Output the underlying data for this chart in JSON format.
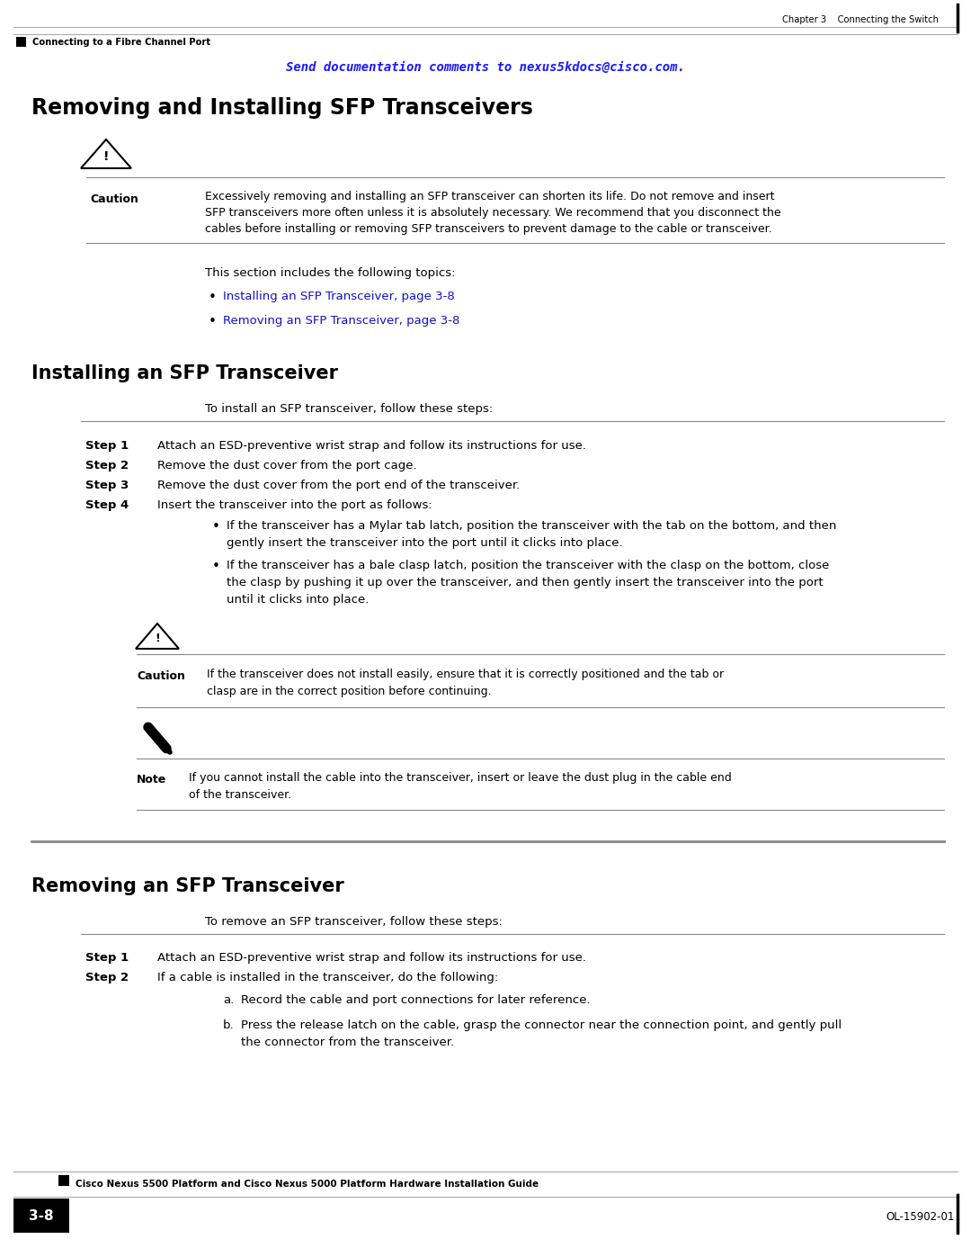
{
  "page_width": 10.8,
  "page_height": 13.97,
  "bg_color": "#ffffff",
  "chapter_text": "Chapter 3    Connecting the Switch",
  "header_left_text": "Connecting to a Fibre Channel Port",
  "send_docs_text": "Send documentation comments to nexus5kdocs@cisco.com.",
  "main_title": "Removing and Installing SFP Transceivers",
  "caution_text_line1": "Excessively removing and installing an SFP transceiver can shorten its life. Do not remove and insert",
  "caution_text_line2": "SFP transceivers more often unless it is absolutely necessary. We recommend that you disconnect the",
  "caution_text_line3": "cables before installing or removing SFP transceivers to prevent damage to the cable or transceiver.",
  "section_intro": "This section includes the following topics:",
  "bullet1": "Installing an SFP Transceiver, page 3-8",
  "bullet2": "Removing an SFP Transceiver, page 3-8",
  "install_title": "Installing an SFP Transceiver",
  "install_intro": "To install an SFP transceiver, follow these steps:",
  "step1_label": "Step 1",
  "step1_text": "Attach an ESD-preventive wrist strap and follow its instructions for use.",
  "step2_label": "Step 2",
  "step2_text": "Remove the dust cover from the port cage.",
  "step3_label": "Step 3",
  "step3_text": "Remove the dust cover from the port end of the transceiver.",
  "step4_label": "Step 4",
  "step4_text": "Insert the transceiver into the port as follows:",
  "bullet_install_1a": "If the transceiver has a Mylar tab latch, position the transceiver with the tab on the bottom, and then",
  "bullet_install_1b": "gently insert the transceiver into the port until it clicks into place.",
  "bullet_install_2a": "If the transceiver has a bale clasp latch, position the transceiver with the clasp on the bottom, close",
  "bullet_install_2b": "the clasp by pushing it up over the transceiver, and then gently insert the transceiver into the port",
  "bullet_install_2c": "until it clicks into place.",
  "caution2_text_line1": "If the transceiver does not install easily, ensure that it is correctly positioned and the tab or",
  "caution2_text_line2": "clasp are in the correct position before continuing.",
  "note_text_line1": "If you cannot install the cable into the transceiver, insert or leave the dust plug in the cable end",
  "note_text_line2": "of the transceiver.",
  "remove_title": "Removing an SFP Transceiver",
  "remove_intro": "To remove an SFP transceiver, follow these steps:",
  "rstep1_label": "Step 1",
  "rstep1_text": "Attach an ESD-preventive wrist strap and follow its instructions for use.",
  "rstep2_label": "Step 2",
  "rstep2_text": "If a cable is installed in the transceiver, do the following:",
  "rbullet_a_label": "a.",
  "rbullet_a": "Record the cable and port connections for later reference.",
  "rbullet_b_label": "b.",
  "rbullet_b1": "Press the release latch on the cable, grasp the connector near the connection point, and gently pull",
  "rbullet_b2": "the connector from the transceiver.",
  "footer_guide": "Cisco Nexus 5500 Platform and Cisco Nexus 5000 Platform Hardware Installation Guide",
  "footer_page": "3-8",
  "footer_doc": "OL-15902-01",
  "blue_color": "#1a1aff",
  "black_color": "#000000",
  "link_color": "#1111cc"
}
